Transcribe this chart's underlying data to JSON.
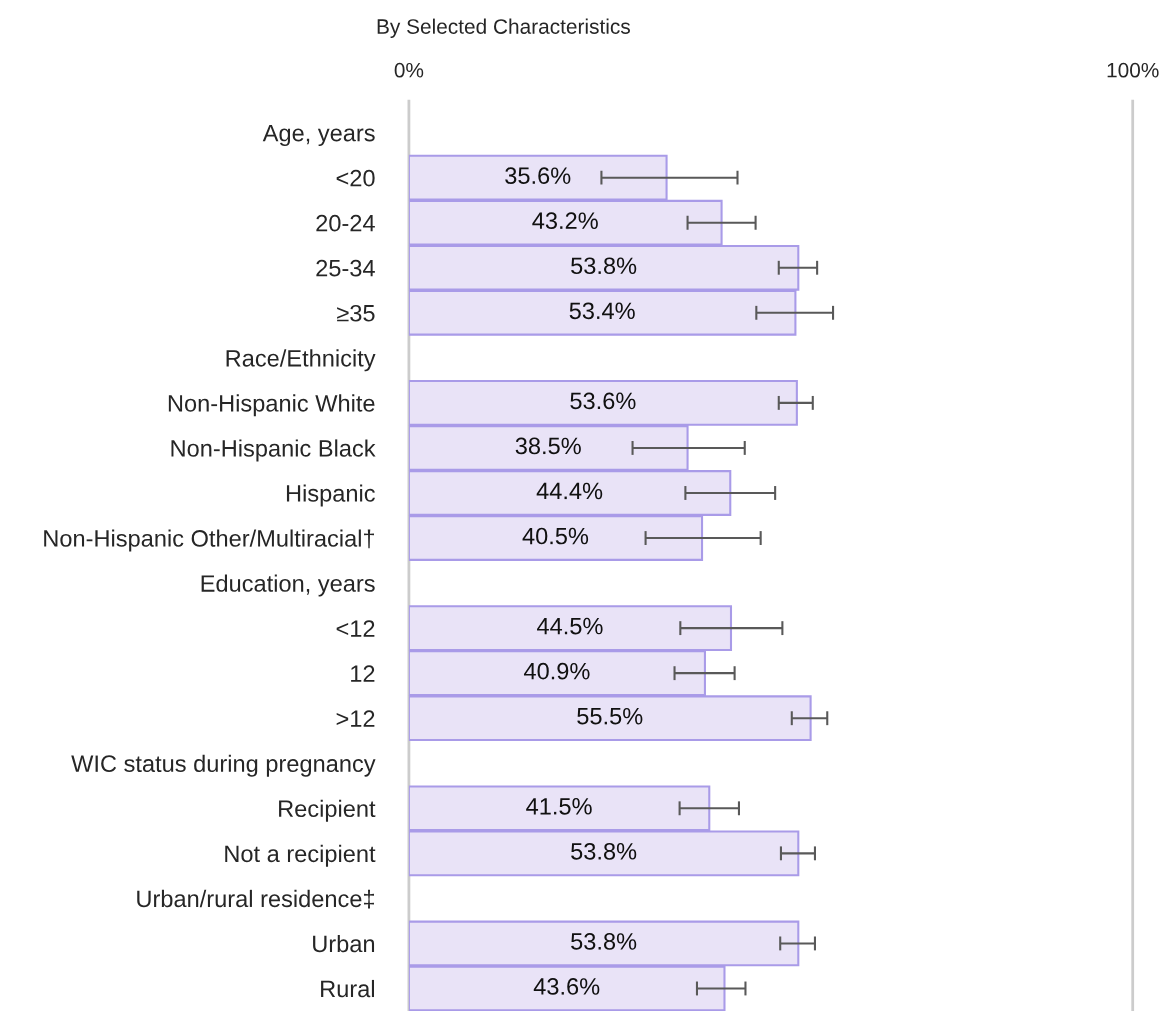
{
  "chart_data": {
    "type": "bar",
    "orientation": "horizontal",
    "title": "By Selected Characteristics",
    "categories": [
      "Age, years",
      "<20",
      "20-24",
      "25-34",
      "≥35",
      "Race/Ethnicity",
      "Non-Hispanic White",
      "Non-Hispanic Black",
      "Hispanic",
      "Non-Hispanic Other/Multiracial†",
      "Education, years",
      "<12",
      "12",
      ">12",
      "WIC status during pregnancy",
      "Recipient",
      "Not a recipient",
      "Urban/rural residence‡",
      "Urban",
      "Rural"
    ],
    "values": [
      null,
      35.6,
      43.2,
      53.8,
      53.4,
      null,
      53.6,
      38.5,
      44.4,
      40.5,
      null,
      44.5,
      40.9,
      55.5,
      null,
      41.5,
      53.8,
      null,
      53.8,
      43.6
    ],
    "errors": [
      null,
      [
        26.6,
        45.4
      ],
      [
        38.5,
        47.9
      ],
      [
        51.1,
        56.4
      ],
      [
        48.0,
        58.6
      ],
      null,
      [
        51.1,
        55.8
      ],
      [
        30.9,
        46.4
      ],
      [
        38.2,
        50.6
      ],
      [
        32.7,
        48.6
      ],
      null,
      [
        37.5,
        51.6
      ],
      [
        36.7,
        45.0
      ],
      [
        52.9,
        57.8
      ],
      null,
      [
        37.4,
        45.6
      ],
      [
        51.4,
        56.1
      ],
      null,
      [
        51.3,
        56.1
      ],
      [
        39.8,
        46.5
      ]
    ],
    "value_labels": [
      null,
      "35.6%",
      "43.2%",
      "53.8%",
      "53.4%",
      null,
      "53.6%",
      "38.5%",
      "44.4%",
      "40.5%",
      null,
      "44.5%",
      "40.9%",
      "55.5%",
      null,
      "41.5%",
      "53.8%",
      null,
      "53.8%",
      "43.6%"
    ],
    "color": "#e9e3f7",
    "xlim": [
      0,
      100
    ],
    "xticks": [
      {
        "value": 0,
        "label": "0%"
      },
      {
        "value": 100,
        "label": "100%"
      }
    ]
  }
}
